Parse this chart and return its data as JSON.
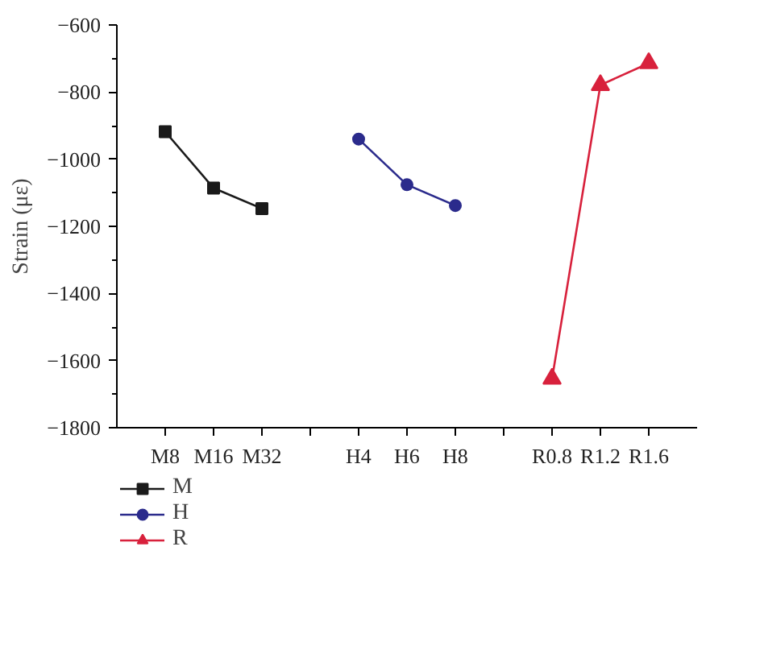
{
  "chart_data": {
    "type": "line",
    "ylabel": "Strain (με)",
    "categories": [
      "M8",
      "M16",
      "M32",
      null,
      "H4",
      "H6",
      "H8",
      null,
      "R0.8",
      "R1.2",
      "R1.6"
    ],
    "series": [
      {
        "name": "M",
        "color": "#1a1a1a",
        "marker": "square",
        "values": [
          -918,
          -1086,
          -1147,
          null,
          null,
          null,
          null,
          null,
          null,
          null,
          null
        ]
      },
      {
        "name": "H",
        "color": "#2b2b8c",
        "marker": "circle",
        "values": [
          null,
          null,
          null,
          null,
          -940,
          -1076,
          -1138,
          null,
          null,
          null,
          null
        ]
      },
      {
        "name": "R",
        "color": "#d8213c",
        "marker": "triangle",
        "values": [
          null,
          null,
          null,
          null,
          null,
          null,
          null,
          null,
          -1654,
          -779,
          -714
        ]
      }
    ],
    "ylim": [
      -1800,
      -600
    ],
    "yticks": [
      -1800,
      -1600,
      -1400,
      -1200,
      -1000,
      -800,
      -600
    ],
    "grid": false,
    "legend": "bottom left"
  }
}
